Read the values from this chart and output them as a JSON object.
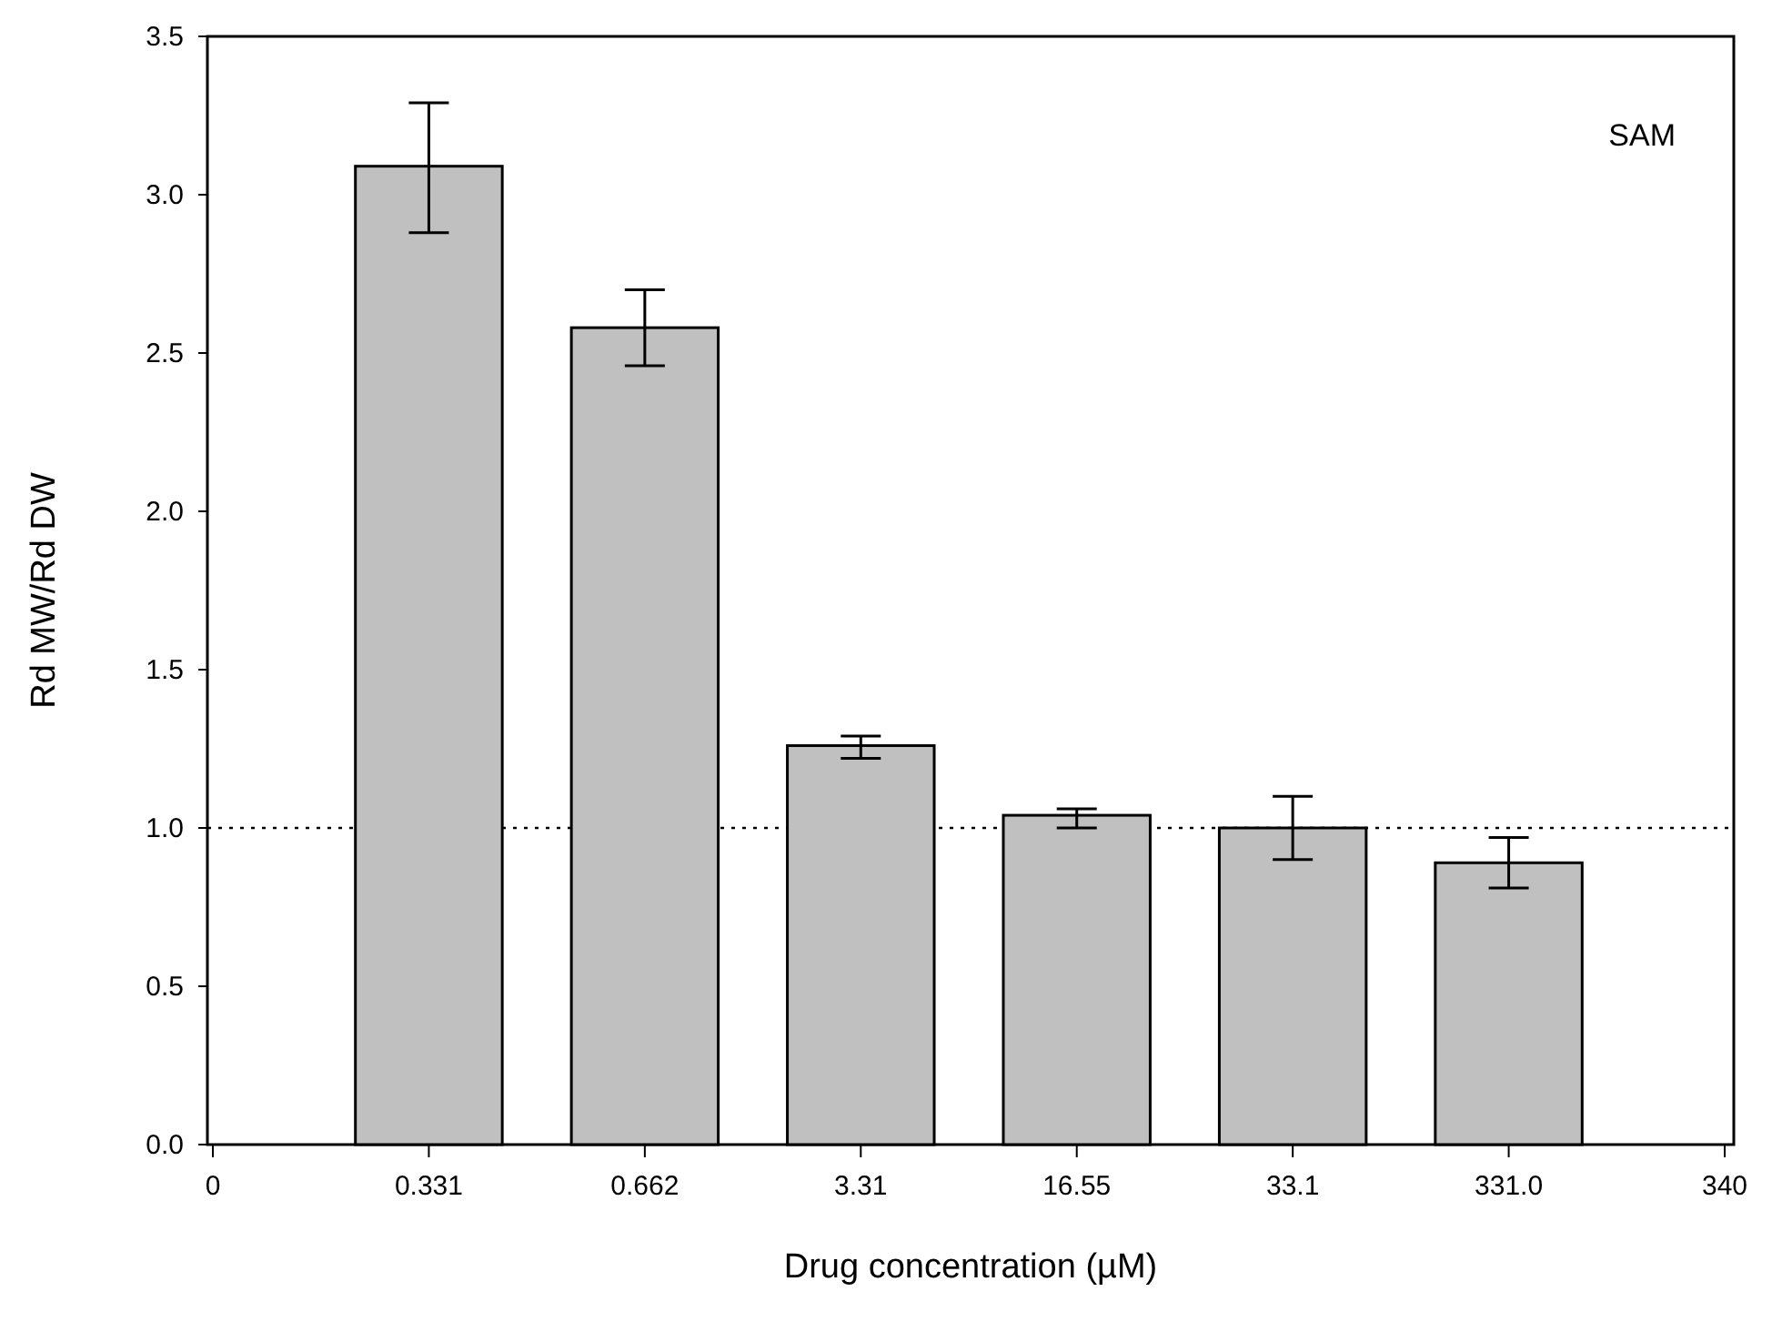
{
  "chart_data": {
    "type": "bar",
    "xlabel": "Drug concentration (µM)",
    "ylabel": "Rd MW/Rd DW",
    "categories": [
      "0",
      "0.331",
      "0.662",
      "3.31",
      "16.55",
      "33.1",
      "331.0",
      "340"
    ],
    "values": [
      null,
      3.09,
      2.58,
      1.26,
      1.04,
      1.0,
      0.89,
      null
    ],
    "errors": [
      null,
      [
        2.88,
        3.29
      ],
      [
        2.46,
        2.7
      ],
      [
        1.22,
        1.29
      ],
      [
        1.0,
        1.06
      ],
      [
        0.9,
        1.1
      ],
      [
        0.81,
        0.97
      ],
      null
    ],
    "color": "#c0c0c0",
    "ylim": [
      0,
      3.5
    ],
    "yticks": [
      {
        "value": 0,
        "label": "0.0"
      },
      {
        "value": 0.5,
        "label": "0.5"
      },
      {
        "value": 1,
        "label": "1.0"
      },
      {
        "value": 1.5,
        "label": "1.5"
      },
      {
        "value": 2,
        "label": "2.0"
      },
      {
        "value": 2.5,
        "label": "2.5"
      },
      {
        "value": 3,
        "label": "3.0"
      },
      {
        "value": 3.5,
        "label": "3.5"
      }
    ],
    "ref_lines": [
      {
        "axis": "y",
        "value": 1,
        "line_style": "dotted",
        "color": "#000000"
      }
    ],
    "annotations": [
      "SAM"
    ],
    "grid": false,
    "legend": false
  }
}
